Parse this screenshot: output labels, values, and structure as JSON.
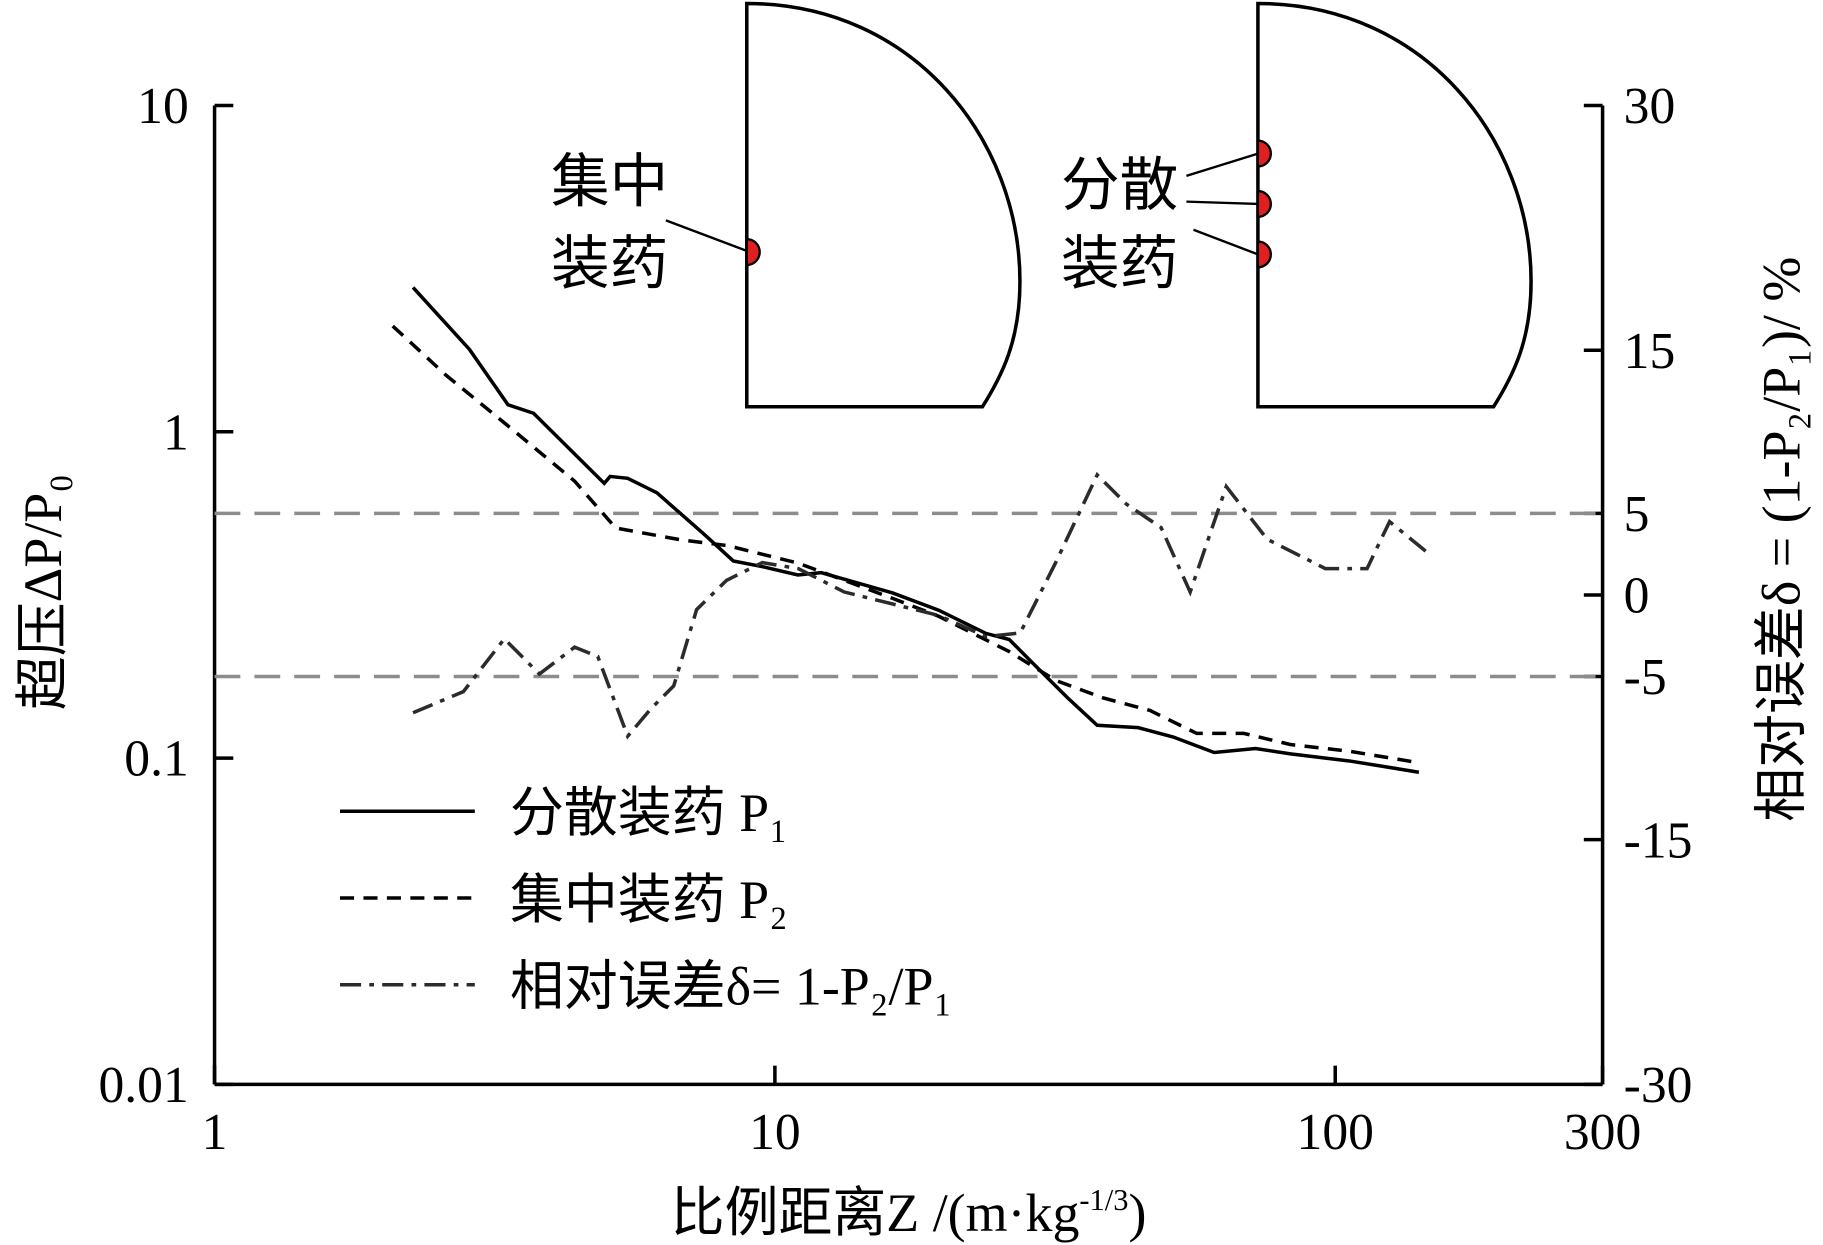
{
  "chart_data": {
    "type": "line",
    "xlabel": [
      "比例距离",
      "Z /(m·kg",
      "-1/3",
      ")"
    ],
    "ylabel": "超压ΔP/P₀",
    "y2label": "相对误差δ = (1-P₂/P₁)/ %",
    "xscale": "log",
    "yscale": "log",
    "xlim": [
      1,
      300
    ],
    "xticks": [
      1,
      10,
      100,
      300
    ],
    "ylim": [
      0.01,
      10
    ],
    "yticks": [
      0.01,
      0.1,
      1,
      10
    ],
    "y2lim": [
      -30,
      30
    ],
    "y2ticks": [
      -30,
      -15,
      -5,
      0,
      5,
      15,
      30
    ],
    "reference_lines": [
      {
        "value": 5,
        "axis": "y2",
        "color": "#8c8c8c"
      },
      {
        "value": -5,
        "axis": "y2",
        "color": "#8c8c8c"
      }
    ],
    "annotations": [
      "集中",
      "装药",
      "分散",
      "装药"
    ],
    "series": [
      {
        "name": "分散装药 P₁",
        "color": "#000000",
        "style": "solid",
        "x": [
          2.26,
          2.85,
          3.34,
          3.71,
          4.96,
          5.08,
          5.46,
          6.16,
          7.47,
          8.43,
          9.51,
          10.99,
          12.1,
          16.2,
          19.6,
          23.8,
          26.2,
          28.8,
          33.3,
          37.6,
          44.5,
          51.4,
          60.8,
          72.1,
          83.2,
          106,
          141
        ],
        "values": [
          2.77,
          1.79,
          1.21,
          1.14,
          0.695,
          0.73,
          0.72,
          0.65,
          0.486,
          0.402,
          0.386,
          0.364,
          0.37,
          0.321,
          0.284,
          0.241,
          0.231,
          0.196,
          0.153,
          0.126,
          0.124,
          0.116,
          0.104,
          0.107,
          0.103,
          0.098,
          0.0905
        ]
      },
      {
        "name": "集中装药 P₂",
        "color": "#000000",
        "style": "dashed",
        "x": [
          2.08,
          2.59,
          3.37,
          4.39,
          5.2,
          6.78,
          8.23,
          10.99,
          16.2,
          19.6,
          26.2,
          31.7,
          38.5,
          46.7,
          56.6,
          68.7,
          83.2,
          106,
          141
        ],
        "values": [
          2.11,
          1.49,
          1.03,
          0.706,
          0.507,
          0.467,
          0.448,
          0.396,
          0.309,
          0.272,
          0.212,
          0.173,
          0.153,
          0.14,
          0.119,
          0.119,
          0.11,
          0.105,
          0.0968
        ]
      },
      {
        "name": "相对误差δ= 1-P₂/P₁",
        "color": "#2b2b2b",
        "style": "dashdot",
        "axis": "y2",
        "x": [
          2.26,
          2.78,
          3.29,
          3.8,
          4.39,
          4.83,
          5.46,
          6.0,
          6.6,
          7.25,
          8.2,
          9.5,
          11.0,
          13.3,
          19.6,
          23.8,
          27.4,
          31.7,
          37.6,
          42.4,
          48.9,
          55.1,
          63.9,
          75.6,
          96,
          114,
          125,
          145
        ],
        "values": [
          -7.22,
          -5.93,
          -2.69,
          -4.85,
          -3.2,
          -3.77,
          -8.66,
          -7.0,
          -5.57,
          -0.9,
          0.9,
          1.98,
          1.62,
          0.18,
          -1.26,
          -2.55,
          -2.33,
          1.98,
          7.36,
          5.57,
          4.13,
          0.18,
          6.65,
          3.41,
          1.62,
          1.62,
          4.49,
          2.69
        ]
      }
    ]
  }
}
